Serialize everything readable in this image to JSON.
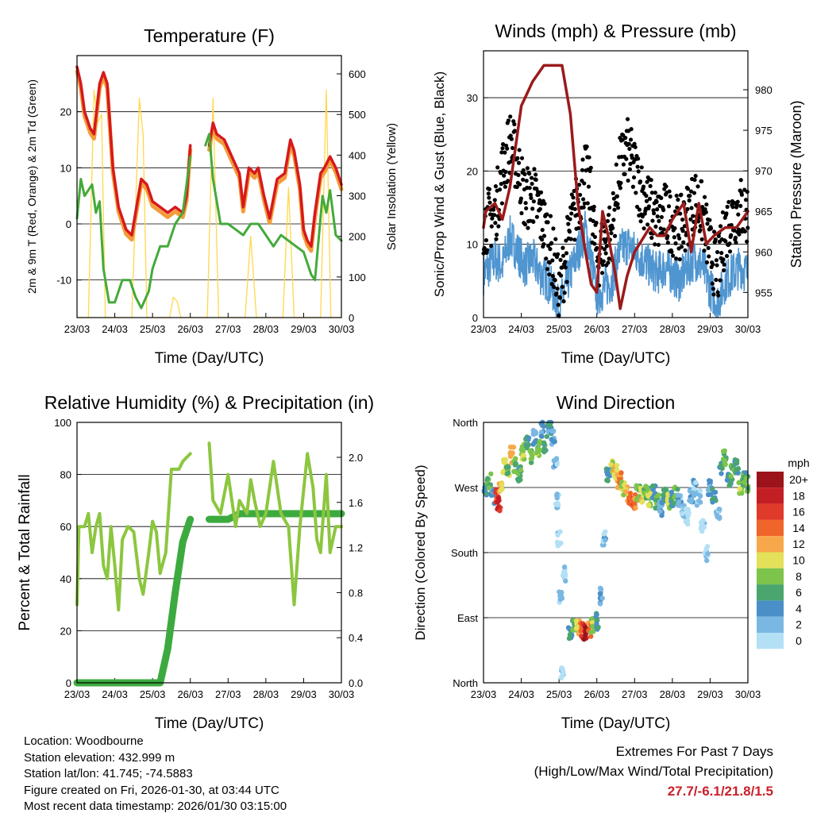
{
  "chart_data": [
    {
      "type": "line",
      "title": "Temperature (F)",
      "xlabel": "Time (Day/UTC)",
      "ylabel": "2m & 9m T (Red, Orange) & 2m Td (Green)",
      "ylabel_right": "Solar Insolation (Yellow)",
      "xticks": [
        "23/03",
        "24/03",
        "25/03",
        "26/03",
        "27/03",
        "28/03",
        "29/03",
        "30/03"
      ],
      "ylim": [
        -16.7,
        30
      ],
      "yticks": [
        -10,
        0,
        10,
        20
      ],
      "ylim_right": [
        0,
        645
      ],
      "yticks_right": [
        0,
        100,
        200,
        300,
        400,
        500,
        600
      ],
      "colors": {
        "t9m": "#d7191c",
        "t2m": "#f39c3a",
        "td": "#44aa3a",
        "solar": "#ffd84a"
      },
      "series": [
        {
          "name": "9m T",
          "x": [
            0,
            0.1,
            0.2,
            0.35,
            0.45,
            0.6,
            0.7,
            0.8,
            0.95,
            1.1,
            1.3,
            1.45,
            1.55,
            1.7,
            1.85,
            2.0,
            2.2,
            2.4,
            2.6,
            2.8,
            2.9,
            3.0,
            null,
            3.5,
            3.6,
            3.7,
            3.9,
            4.1,
            4.3,
            4.4,
            4.55,
            4.7,
            4.8,
            4.95,
            5.1,
            5.3,
            5.5,
            5.65,
            5.75,
            5.9,
            6.0,
            6.1,
            6.2,
            6.3,
            6.45,
            6.55,
            6.7,
            6.85,
            7.0
          ],
          "y": [
            28,
            25,
            20,
            17,
            16,
            25,
            27,
            25,
            10,
            3,
            -1,
            -2,
            2,
            8,
            7,
            4,
            3,
            2,
            3,
            2,
            5,
            14,
            null,
            14,
            18,
            16,
            15,
            12,
            9,
            3,
            10,
            9,
            10,
            5,
            1,
            8,
            9,
            15,
            13,
            7,
            -1,
            -3,
            -4,
            2,
            9,
            10,
            12,
            10,
            7
          ]
        },
        {
          "name": "2m Td",
          "x": [
            0,
            0.1,
            0.2,
            0.4,
            0.5,
            0.6,
            0.7,
            0.85,
            1.0,
            1.2,
            1.4,
            1.55,
            1.7,
            1.9,
            2.0,
            2.2,
            2.4,
            2.6,
            2.8,
            3.0,
            null,
            3.4,
            3.5,
            3.6,
            3.8,
            4.0,
            4.2,
            4.4,
            4.6,
            4.8,
            5.0,
            5.2,
            5.4,
            5.6,
            5.8,
            6.0,
            6.2,
            6.3,
            6.5,
            6.6,
            6.7,
            6.85,
            7.0
          ],
          "y": [
            1,
            8,
            5,
            7,
            2,
            4,
            -8,
            -14,
            -14,
            -10,
            -10,
            -13,
            -15,
            -12,
            -8,
            -4,
            -4,
            0,
            2,
            12,
            null,
            14,
            16,
            8,
            0,
            0,
            -1,
            -2,
            0,
            0,
            -2,
            -4,
            -2,
            -3,
            -4,
            -5,
            -9,
            -10,
            5,
            2,
            6,
            -2,
            -3
          ]
        },
        {
          "name": "Solar",
          "x": [
            0,
            0.3,
            0.45,
            0.55,
            0.65,
            0.75,
            1.0,
            1.45,
            1.65,
            1.75,
            1.85,
            2.0,
            2.45,
            2.55,
            2.65,
            2.75,
            3.0,
            3.45,
            3.6,
            3.75,
            4.0,
            4.45,
            4.6,
            4.75,
            5.0,
            5.45,
            5.6,
            5.75,
            6.0,
            6.45,
            6.6,
            6.72,
            7.0
          ],
          "y": [
            0,
            0,
            560,
            480,
            500,
            0,
            0,
            0,
            540,
            450,
            0,
            0,
            0,
            50,
            40,
            0,
            0,
            0,
            540,
            0,
            0,
            0,
            200,
            0,
            0,
            0,
            320,
            0,
            0,
            0,
            560,
            0,
            0
          ]
        }
      ]
    },
    {
      "type": "scatter+line",
      "title": "Winds (mph) & Pressure (mb)",
      "xlabel": "Time (Day/UTC)",
      "ylabel": "Sonic/Prop Wind & Gust (Blue, Black)",
      "ylabel_right": "Station Pressure (Maroon)",
      "xticks": [
        "23/03",
        "24/03",
        "25/03",
        "26/03",
        "27/03",
        "28/03",
        "29/03",
        "30/03"
      ],
      "ylim": [
        0,
        36.4
      ],
      "yticks": [
        0,
        10,
        20,
        30
      ],
      "ylim_right": [
        951.9,
        984.8
      ],
      "yticks_right": [
        955,
        960,
        965,
        970,
        975,
        980
      ],
      "colors": {
        "wind": "#4f95d0",
        "gust": "#000000",
        "pressure": "#9b1b1b"
      },
      "series": [
        {
          "name": "Wind",
          "x": [
            0,
            0.3,
            0.5,
            0.7,
            0.9,
            1.1,
            1.3,
            1.5,
            1.7,
            1.9,
            2.0,
            2.1,
            2.3,
            2.5,
            2.7,
            2.85,
            3.0,
            3.2,
            3.4,
            3.6,
            3.8,
            4.0,
            4.2,
            4.4,
            4.6,
            4.8,
            5.0,
            5.2,
            5.4,
            5.6,
            5.8,
            6.0,
            6.2,
            6.4,
            6.6,
            6.8,
            7.0
          ],
          "y": [
            6,
            8,
            7,
            11,
            9,
            7,
            8,
            6,
            5,
            3,
            1,
            3,
            6,
            9,
            12,
            8,
            3,
            4,
            5,
            9,
            10,
            9,
            8,
            7,
            6,
            7,
            6,
            5,
            7,
            8,
            7,
            4,
            2,
            5,
            6,
            7,
            6
          ]
        },
        {
          "name": "Gust",
          "x": [
            0,
            0.3,
            0.5,
            0.7,
            0.9,
            1.1,
            1.3,
            1.5,
            1.7,
            1.9,
            2.0,
            2.1,
            2.3,
            2.5,
            2.7,
            2.85,
            3.0,
            3.2,
            3.4,
            3.6,
            3.8,
            4.0,
            4.2,
            4.4,
            4.6,
            4.8,
            5.0,
            5.2,
            5.4,
            5.6,
            5.8,
            6.0,
            6.2,
            6.4,
            6.6,
            6.8,
            7.0
          ],
          "y": [
            13,
            14,
            20,
            24,
            21,
            16,
            17,
            14,
            11,
            7,
            3,
            6,
            12,
            16,
            20,
            16,
            8,
            10,
            12,
            20,
            23,
            20,
            17,
            15,
            13,
            14,
            13,
            12,
            14,
            16,
            14,
            9,
            6,
            12,
            14,
            15,
            14
          ]
        },
        {
          "name": "Pressure",
          "x": [
            0,
            0.06,
            0.3,
            0.5,
            0.7,
            1.0,
            1.3,
            1.6,
            1.9,
            2.08,
            2.3,
            2.5,
            2.7,
            2.85,
            3.0,
            3.15,
            3.3,
            3.5,
            3.62,
            3.8,
            4.0,
            4.4,
            4.6,
            4.8,
            5.0,
            5.3,
            5.5,
            5.7,
            5.9,
            6.1,
            6.4,
            6.7,
            7.0
          ],
          "y": [
            963,
            965,
            966,
            964,
            968,
            978,
            981,
            983,
            983,
            983,
            977,
            966,
            960,
            956,
            955,
            965,
            962,
            957,
            953,
            957,
            960,
            963,
            962,
            962,
            964,
            966,
            960,
            966,
            961,
            962,
            963,
            963,
            965
          ]
        }
      ]
    },
    {
      "type": "line",
      "title": "Relative Humidity (%) & Precipitation (in)",
      "xlabel": "Time (Day/UTC)",
      "ylabel": "Percent & Total Rainfall",
      "xticks": [
        "23/03",
        "24/03",
        "25/03",
        "26/03",
        "27/03",
        "28/03",
        "29/03",
        "30/03"
      ],
      "ylim": [
        0,
        100
      ],
      "yticks": [
        0,
        20,
        40,
        60,
        80,
        100
      ],
      "ylim_right": [
        0,
        2.31
      ],
      "yticks_right": [
        "0.0",
        "0.4",
        "0.8",
        "1.2",
        "1.6",
        "2.0"
      ],
      "colors": {
        "rh": "#8cc63f",
        "precip": "#3daa3f"
      },
      "series": [
        {
          "name": "RH",
          "x": [
            0,
            0.05,
            0.2,
            0.3,
            0.4,
            0.5,
            0.6,
            0.7,
            0.8,
            0.9,
            1.0,
            1.1,
            1.2,
            1.35,
            1.5,
            1.65,
            1.75,
            1.9,
            2.0,
            2.1,
            2.2,
            2.35,
            2.5,
            2.7,
            2.8,
            3.0,
            null,
            3.5,
            3.6,
            3.8,
            4.0,
            4.2,
            4.3,
            4.5,
            4.6,
            4.7,
            4.85,
            5.0,
            5.2,
            5.4,
            5.6,
            5.75,
            5.9,
            6.1,
            6.25,
            6.35,
            6.45,
            6.6,
            6.7,
            6.85,
            7.0
          ],
          "y": [
            30,
            60,
            60,
            65,
            50,
            60,
            65,
            45,
            40,
            60,
            45,
            28,
            55,
            60,
            58,
            40,
            34,
            50,
            62,
            58,
            42,
            50,
            82,
            82,
            85,
            88,
            null,
            92,
            70,
            65,
            80,
            60,
            70,
            65,
            78,
            70,
            60,
            65,
            85,
            65,
            60,
            30,
            60,
            88,
            75,
            55,
            50,
            80,
            50,
            60,
            60
          ]
        },
        {
          "name": "Precip",
          "x": [
            0,
            2.2,
            2.4,
            2.6,
            2.8,
            3.0,
            null,
            3.5,
            4.0,
            4.3,
            7.0
          ],
          "y": [
            0,
            0,
            0.3,
            0.8,
            1.25,
            1.45,
            null,
            1.45,
            1.45,
            1.5,
            1.5
          ]
        }
      ]
    },
    {
      "type": "scatter",
      "title": "Wind Direction",
      "xlabel": "Time (Day/UTC)",
      "ylabel": "Direction (Colored By Speed)",
      "xticks": [
        "23/03",
        "24/03",
        "25/03",
        "26/03",
        "27/03",
        "28/03",
        "29/03",
        "30/03"
      ],
      "ylim": [
        0,
        360
      ],
      "yticks": [
        "North",
        "East",
        "South",
        "West",
        "North"
      ],
      "legend": {
        "title": "mph",
        "position": "right",
        "labels": [
          "20+",
          "18",
          "16",
          "14",
          "12",
          "10",
          "8",
          "6",
          "4",
          "2",
          "0"
        ],
        "colors": [
          "#9b141c",
          "#c41e25",
          "#e03a2a",
          "#f0652a",
          "#f7a84a",
          "#e3e05a",
          "#7cc44c",
          "#4aa66e",
          "#4a8fc7",
          "#7ab8e3",
          "#b3e0f5"
        ]
      },
      "points": [
        [
          0.05,
          270,
          6
        ],
        [
          0.15,
          280,
          8
        ],
        [
          0.25,
          255,
          4
        ],
        [
          0.35,
          260,
          16
        ],
        [
          0.4,
          245,
          18
        ],
        [
          0.45,
          270,
          12
        ],
        [
          0.55,
          300,
          10
        ],
        [
          0.65,
          290,
          9
        ],
        [
          0.75,
          315,
          12
        ],
        [
          0.85,
          300,
          8
        ],
        [
          0.95,
          290,
          7
        ],
        [
          1.05,
          320,
          10
        ],
        [
          1.15,
          330,
          6
        ],
        [
          1.25,
          315,
          8
        ],
        [
          1.35,
          340,
          5
        ],
        [
          1.45,
          325,
          9
        ],
        [
          1.55,
          350,
          4
        ],
        [
          1.65,
          330,
          7
        ],
        [
          1.75,
          355,
          5
        ],
        [
          1.85,
          340,
          4
        ],
        [
          1.9,
          300,
          3
        ],
        [
          1.95,
          250,
          2
        ],
        [
          2.0,
          200,
          1
        ],
        [
          2.05,
          120,
          3
        ],
        [
          2.1,
          10,
          2
        ],
        [
          2.15,
          150,
          1
        ],
        [
          2.3,
          70,
          6
        ],
        [
          2.4,
          80,
          8
        ],
        [
          2.5,
          75,
          12
        ],
        [
          2.6,
          72,
          16
        ],
        [
          2.7,
          68,
          20
        ],
        [
          2.8,
          75,
          14
        ],
        [
          2.9,
          80,
          9
        ],
        [
          3.0,
          85,
          6
        ],
        [
          3.1,
          120,
          4
        ],
        [
          3.2,
          200,
          3
        ],
        [
          3.3,
          290,
          6
        ],
        [
          3.4,
          300,
          10
        ],
        [
          3.5,
          290,
          12
        ],
        [
          3.6,
          280,
          14
        ],
        [
          3.7,
          270,
          10
        ],
        [
          3.8,
          260,
          12
        ],
        [
          3.9,
          255,
          16
        ],
        [
          4.0,
          250,
          14
        ],
        [
          4.1,
          262,
          9
        ],
        [
          4.2,
          258,
          12
        ],
        [
          4.3,
          265,
          8
        ],
        [
          4.4,
          255,
          10
        ],
        [
          4.5,
          262,
          6
        ],
        [
          4.6,
          250,
          8
        ],
        [
          4.7,
          240,
          4
        ],
        [
          4.8,
          260,
          7
        ],
        [
          4.9,
          250,
          10
        ],
        [
          5.0,
          255,
          6
        ],
        [
          5.1,
          260,
          8
        ],
        [
          5.2,
          250,
          3
        ],
        [
          5.3,
          240,
          2
        ],
        [
          5.4,
          230,
          1
        ],
        [
          5.5,
          260,
          4
        ],
        [
          5.6,
          270,
          3
        ],
        [
          5.7,
          255,
          2
        ],
        [
          5.8,
          220,
          1
        ],
        [
          5.9,
          180,
          2
        ],
        [
          6.0,
          270,
          4
        ],
        [
          6.1,
          260,
          6
        ],
        [
          6.2,
          230,
          3
        ],
        [
          6.3,
          300,
          5
        ],
        [
          6.4,
          310,
          8
        ],
        [
          6.5,
          280,
          6
        ],
        [
          6.6,
          290,
          8
        ],
        [
          6.7,
          300,
          6
        ],
        [
          6.8,
          270,
          10
        ],
        [
          6.9,
          280,
          7
        ],
        [
          7.0,
          275,
          8
        ]
      ]
    }
  ],
  "info": {
    "location": "Location: Woodbourne",
    "elevation": "Station elevation: 432.999 m",
    "latlon": "Station lat/lon: 41.745; -74.5883",
    "created": "Figure created on Fri, 2026-01-30, at 03:44 UTC",
    "recent": "Most recent data timestamp: 2026/01/30 03:15:00"
  },
  "extremes": {
    "title": "Extremes For Past 7 Days",
    "subtitle": "(High/Low/Max Wind/Total Precipitation)",
    "values": "27.7/-6.1/21.8/1.5"
  }
}
